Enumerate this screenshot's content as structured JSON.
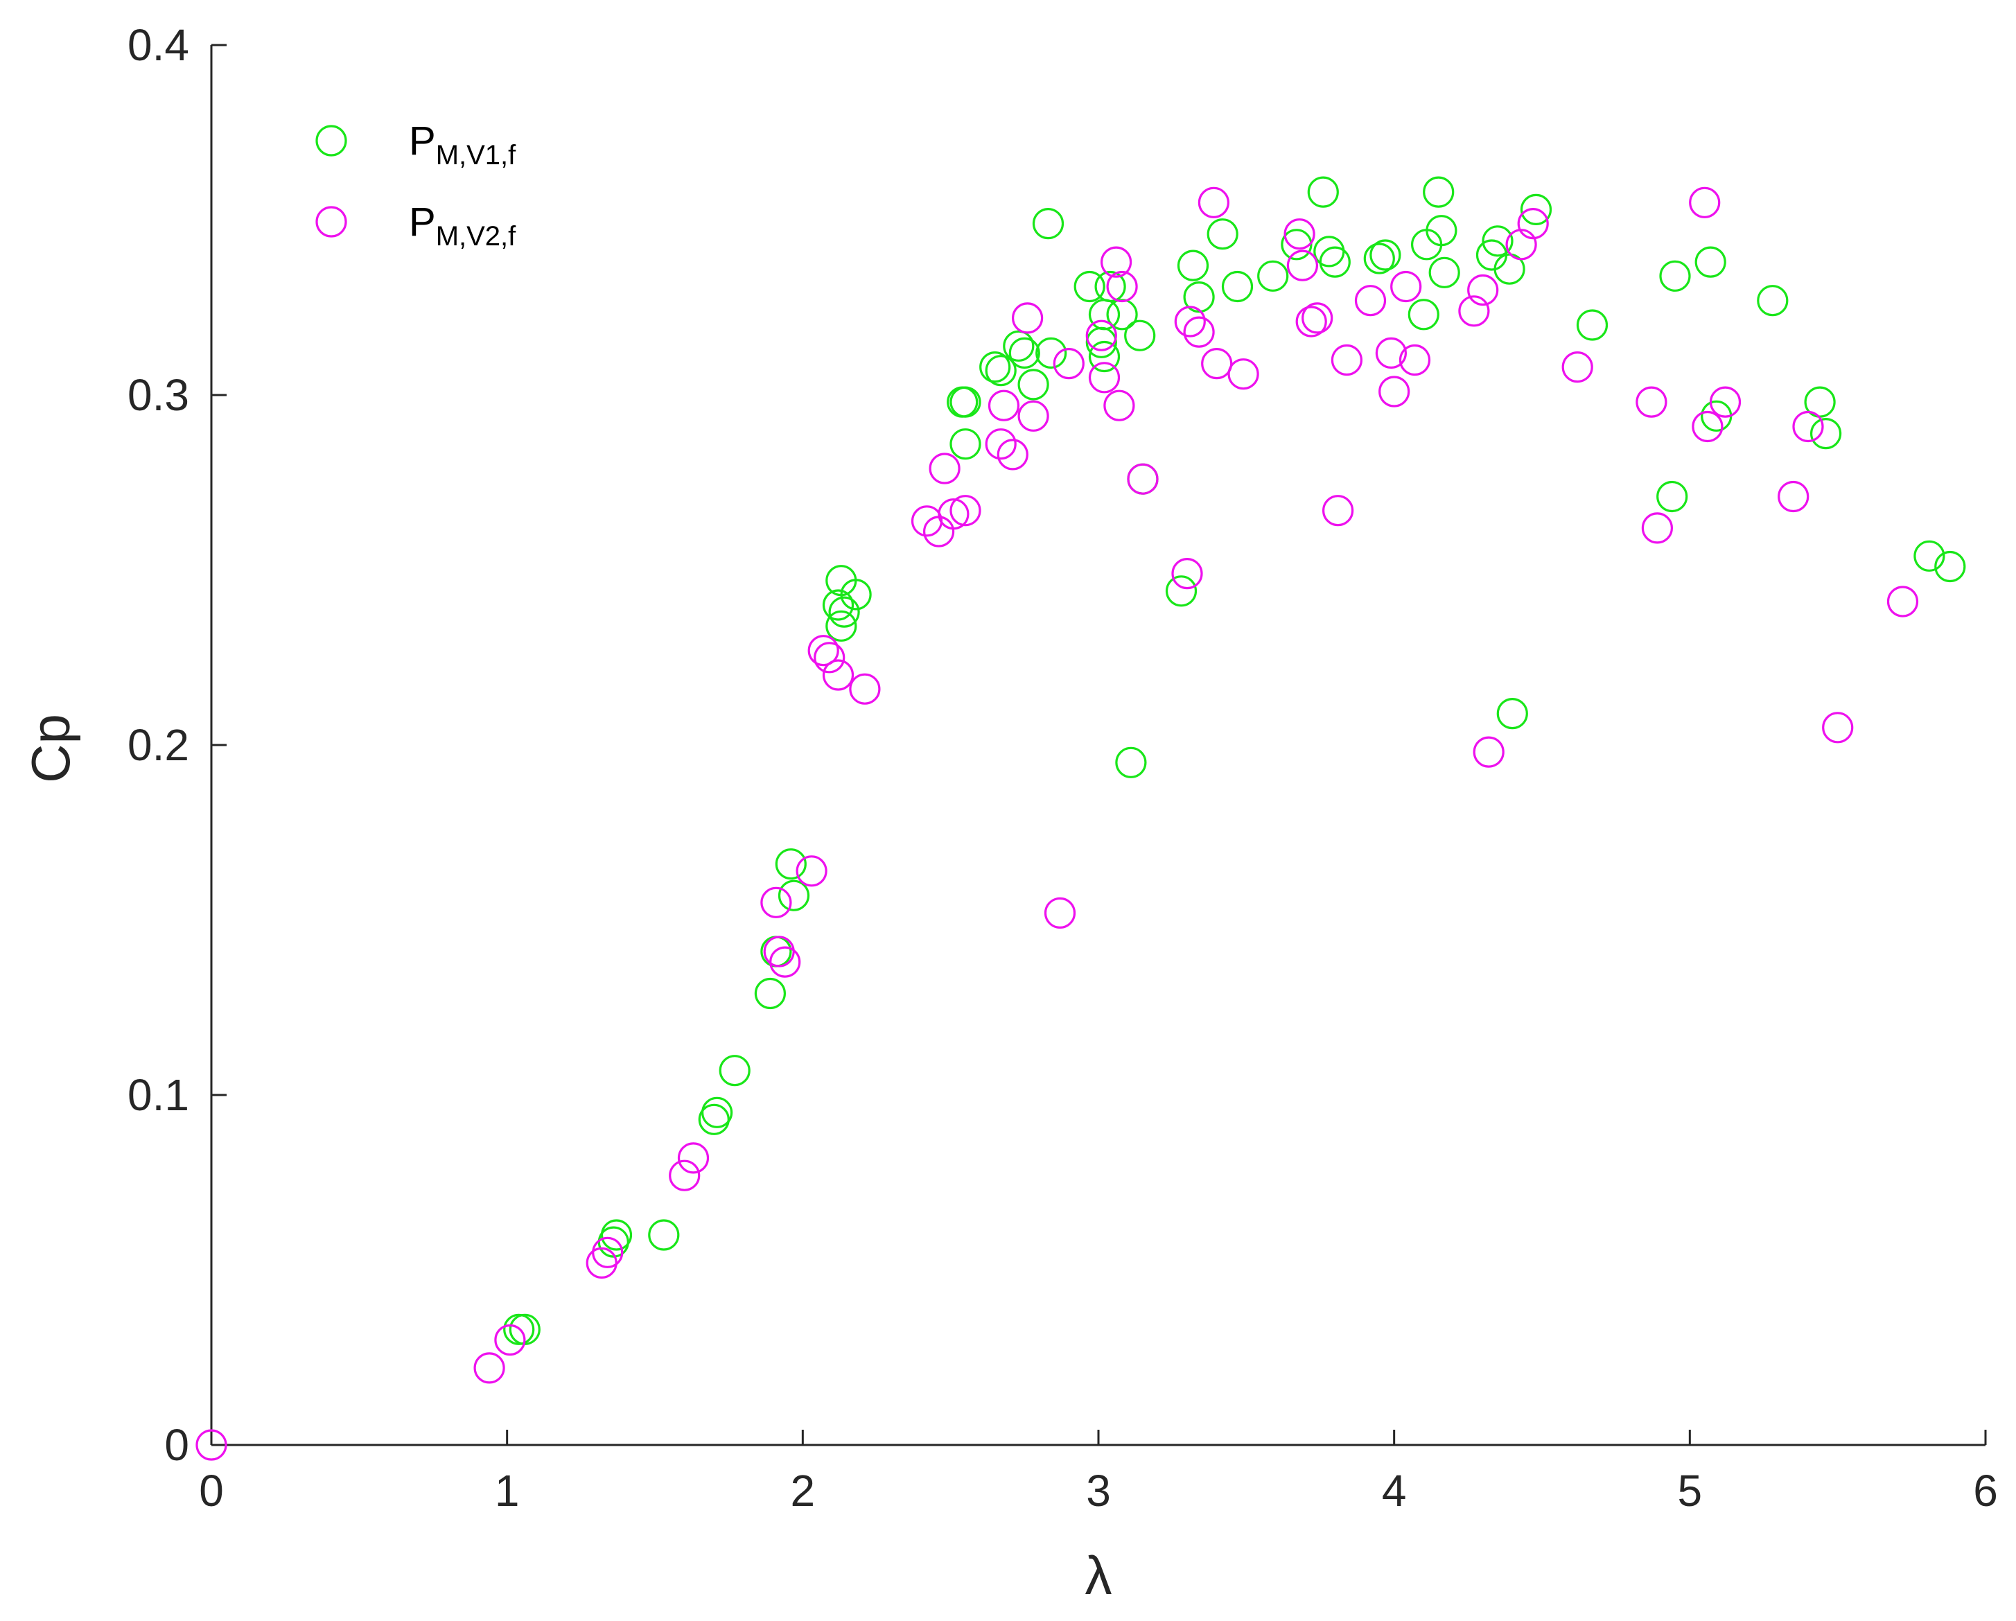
{
  "chart_data": {
    "type": "scatter",
    "xlabel": "λ",
    "ylabel": "Cp",
    "xlim": [
      0,
      6
    ],
    "ylim": [
      0,
      0.4
    ],
    "xticks": [
      "0",
      "1",
      "2",
      "3",
      "4",
      "5",
      "6"
    ],
    "yticks": [
      "0",
      "0.1",
      "0.2",
      "0.3",
      "0.4"
    ],
    "grid": false,
    "legend_position": "top-left",
    "marker": "open-circle",
    "series": [
      {
        "name": "P",
        "name_sub": "M,V1,f",
        "color": "#19e619",
        "points": [
          [
            1.04,
            0.033
          ],
          [
            1.06,
            0.033
          ],
          [
            1.36,
            0.058
          ],
          [
            1.37,
            0.06
          ],
          [
            1.53,
            0.06
          ],
          [
            1.7,
            0.093
          ],
          [
            1.71,
            0.095
          ],
          [
            1.77,
            0.107
          ],
          [
            1.89,
            0.129
          ],
          [
            1.91,
            0.141
          ],
          [
            1.96,
            0.166
          ],
          [
            1.97,
            0.157
          ],
          [
            2.12,
            0.24
          ],
          [
            2.13,
            0.247
          ],
          [
            2.13,
            0.234
          ],
          [
            2.14,
            0.238
          ],
          [
            2.18,
            0.243
          ],
          [
            2.54,
            0.298
          ],
          [
            2.55,
            0.298
          ],
          [
            2.55,
            0.286
          ],
          [
            2.65,
            0.308
          ],
          [
            2.67,
            0.307
          ],
          [
            2.73,
            0.314
          ],
          [
            2.75,
            0.312
          ],
          [
            2.78,
            0.303
          ],
          [
            2.83,
            0.349
          ],
          [
            2.84,
            0.312
          ],
          [
            2.97,
            0.331
          ],
          [
            3.01,
            0.315
          ],
          [
            3.02,
            0.311
          ],
          [
            3.02,
            0.323
          ],
          [
            3.04,
            0.331
          ],
          [
            3.08,
            0.323
          ],
          [
            3.11,
            0.195
          ],
          [
            3.14,
            0.317
          ],
          [
            3.15,
            0.276
          ],
          [
            3.28,
            0.244
          ],
          [
            3.32,
            0.337
          ],
          [
            3.34,
            0.328
          ],
          [
            3.42,
            0.346
          ],
          [
            3.47,
            0.331
          ],
          [
            3.59,
            0.334
          ],
          [
            3.67,
            0.343
          ],
          [
            3.76,
            0.358
          ],
          [
            3.78,
            0.341
          ],
          [
            3.8,
            0.338
          ],
          [
            3.95,
            0.339
          ],
          [
            3.97,
            0.34
          ],
          [
            4.1,
            0.323
          ],
          [
            4.11,
            0.343
          ],
          [
            4.15,
            0.358
          ],
          [
            4.16,
            0.347
          ],
          [
            4.17,
            0.335
          ],
          [
            4.33,
            0.34
          ],
          [
            4.35,
            0.344
          ],
          [
            4.39,
            0.336
          ],
          [
            4.4,
            0.209
          ],
          [
            4.48,
            0.353
          ],
          [
            4.67,
            0.32
          ],
          [
            4.94,
            0.271
          ],
          [
            4.95,
            0.334
          ],
          [
            5.07,
            0.338
          ],
          [
            5.09,
            0.294
          ],
          [
            5.28,
            0.327
          ],
          [
            5.44,
            0.298
          ],
          [
            5.46,
            0.289
          ],
          [
            5.81,
            0.254
          ],
          [
            5.88,
            0.251
          ]
        ]
      },
      {
        "name": "P",
        "name_sub": "M,V2,f",
        "color": "#ee11ee",
        "points": [
          [
            0.0,
            0.0
          ],
          [
            0.94,
            0.022
          ],
          [
            1.01,
            0.03
          ],
          [
            1.32,
            0.052
          ],
          [
            1.34,
            0.055
          ],
          [
            1.6,
            0.077
          ],
          [
            1.63,
            0.082
          ],
          [
            1.91,
            0.155
          ],
          [
            1.92,
            0.141
          ],
          [
            1.94,
            0.138
          ],
          [
            2.03,
            0.164
          ],
          [
            2.07,
            0.227
          ],
          [
            2.09,
            0.225
          ],
          [
            2.12,
            0.22
          ],
          [
            2.21,
            0.216
          ],
          [
            2.42,
            0.264
          ],
          [
            2.46,
            0.261
          ],
          [
            2.48,
            0.279
          ],
          [
            2.51,
            0.266
          ],
          [
            2.55,
            0.267
          ],
          [
            2.67,
            0.286
          ],
          [
            2.68,
            0.297
          ],
          [
            2.71,
            0.283
          ],
          [
            2.76,
            0.322
          ],
          [
            2.78,
            0.294
          ],
          [
            2.87,
            0.152
          ],
          [
            2.9,
            0.309
          ],
          [
            3.01,
            0.317
          ],
          [
            3.02,
            0.305
          ],
          [
            3.06,
            0.338
          ],
          [
            3.07,
            0.297
          ],
          [
            3.08,
            0.331
          ],
          [
            3.15,
            0.276
          ],
          [
            3.3,
            0.249
          ],
          [
            3.31,
            0.321
          ],
          [
            3.34,
            0.318
          ],
          [
            3.39,
            0.355
          ],
          [
            3.4,
            0.309
          ],
          [
            3.49,
            0.306
          ],
          [
            3.68,
            0.346
          ],
          [
            3.69,
            0.337
          ],
          [
            3.72,
            0.321
          ],
          [
            3.74,
            0.322
          ],
          [
            3.81,
            0.267
          ],
          [
            3.84,
            0.31
          ],
          [
            3.92,
            0.327
          ],
          [
            3.99,
            0.312
          ],
          [
            4.0,
            0.301
          ],
          [
            4.04,
            0.331
          ],
          [
            4.07,
            0.31
          ],
          [
            4.27,
            0.324
          ],
          [
            4.3,
            0.33
          ],
          [
            4.32,
            0.198
          ],
          [
            4.43,
            0.343
          ],
          [
            4.47,
            0.349
          ],
          [
            4.62,
            0.308
          ],
          [
            4.87,
            0.298
          ],
          [
            4.89,
            0.262
          ],
          [
            5.05,
            0.355
          ],
          [
            5.06,
            0.291
          ],
          [
            5.12,
            0.298
          ],
          [
            5.35,
            0.271
          ],
          [
            5.4,
            0.291
          ],
          [
            5.5,
            0.205
          ],
          [
            5.72,
            0.241
          ]
        ]
      }
    ]
  }
}
